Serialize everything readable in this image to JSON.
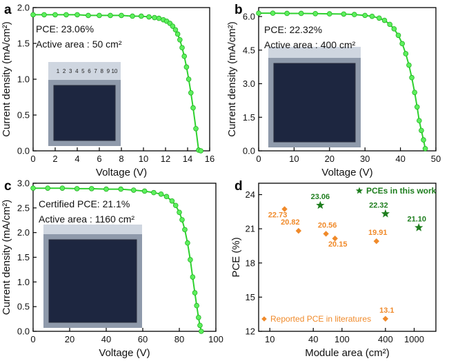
{
  "colors": {
    "curve": "#2ed12e",
    "marker_fill": "#5df05d",
    "marker_edge": "#22b022",
    "this_work": "#1e7e1e",
    "literature": "#f08a2a",
    "module_photo": "#1d2640",
    "ruler": "#cfd6e0"
  },
  "chart_data": [
    {
      "panel": "a",
      "type": "line",
      "xlabel": "Voltage (V)",
      "ylabel": "Current density (mA/cm²)",
      "xlim": [
        0,
        16
      ],
      "ylim": [
        0,
        2.0
      ],
      "xticks": [
        0,
        2,
        4,
        6,
        8,
        10,
        12,
        14,
        16
      ],
      "yticks": [
        0.0,
        0.5,
        1.0,
        1.5,
        2.0
      ],
      "yfmt": 1,
      "annotations": [
        "PCE: 23.06%",
        "Active area : 50 cm²"
      ],
      "ruler_marks": [
        "1",
        "2",
        "3",
        "4",
        "5",
        "6",
        "7",
        "8",
        "9",
        "10"
      ],
      "curve": {
        "jsc": 1.9,
        "voc": 15.2,
        "ka": 0.005,
        "kb": 0.0028
      },
      "x": [
        0.0,
        1.0,
        2.0,
        3.0,
        4.0,
        5.0,
        6.0,
        7.0,
        8.0,
        9.0,
        9.8,
        10.5,
        11.0,
        11.4,
        11.8,
        12.1,
        12.4,
        12.65,
        12.9,
        13.1,
        13.3,
        13.5,
        13.7,
        13.9,
        14.1,
        14.3,
        14.5,
        14.75,
        15.0,
        15.2
      ],
      "y": [
        1.9,
        1.9,
        1.9,
        1.9,
        1.9,
        1.89,
        1.89,
        1.89,
        1.89,
        1.88,
        1.88,
        1.87,
        1.86,
        1.85,
        1.83,
        1.81,
        1.78,
        1.74,
        1.69,
        1.63,
        1.55,
        1.44,
        1.32,
        1.17,
        1.0,
        0.81,
        0.6,
        0.31,
        0.01,
        0.0
      ]
    },
    {
      "panel": "b",
      "type": "line",
      "xlabel": "Voltage (V)",
      "ylabel": "Current density (mA/cm²)",
      "xlim": [
        0,
        50
      ],
      "ylim": [
        0,
        6.4
      ],
      "xticks": [
        0,
        10,
        20,
        30,
        40,
        50
      ],
      "yticks": [
        0.0,
        1.5,
        3.0,
        4.5,
        6.0
      ],
      "yfmt": 1,
      "annotations": [
        "PCE: 22.32%",
        "Active area : 400 cm²"
      ],
      "curve": {
        "jsc": 6.15,
        "voc": 47.0,
        "ka": 0.0035,
        "kb": 0.0016
      },
      "x": [
        0,
        4,
        8,
        12,
        16,
        20,
        24,
        27,
        30,
        32,
        34,
        35.5,
        37,
        38.2,
        39.4,
        40.5,
        41.5,
        42.4,
        43.2,
        44.0,
        44.7,
        45.3,
        45.9,
        46.5,
        47.0
      ],
      "y": [
        6.15,
        6.15,
        6.14,
        6.14,
        6.13,
        6.12,
        6.11,
        6.09,
        6.05,
        6.01,
        5.93,
        5.83,
        5.65,
        5.45,
        5.16,
        4.79,
        4.34,
        3.83,
        3.27,
        2.61,
        1.96,
        1.35,
        0.91,
        0.49,
        0.1
      ]
    },
    {
      "panel": "c",
      "type": "line",
      "xlabel": "Voltage (V)",
      "ylabel": "Current density (mA/cm²)",
      "xlim": [
        0,
        100
      ],
      "ylim": [
        0,
        3.0
      ],
      "xticks": [
        0,
        20,
        40,
        60,
        80,
        100
      ],
      "yticks": [
        0.0,
        0.5,
        1.0,
        1.5,
        2.0,
        2.5,
        3.0
      ],
      "yfmt": 1,
      "annotations": [
        "Certified PCE: 21.1%",
        "Active area : 1160 cm²"
      ],
      "curve": {
        "jsc": 2.9,
        "voc": 92.0,
        "ka": 0.004,
        "kb": 0.002
      },
      "x": [
        0,
        8,
        16,
        24,
        32,
        40,
        48,
        55,
        61,
        66,
        70,
        73,
        76,
        78,
        80,
        81.5,
        83,
        84.5,
        86,
        87.3,
        88.5,
        89.5,
        90.5,
        91.3,
        92.0
      ],
      "y": [
        2.9,
        2.9,
        2.9,
        2.89,
        2.89,
        2.88,
        2.88,
        2.86,
        2.84,
        2.81,
        2.78,
        2.73,
        2.64,
        2.55,
        2.41,
        2.26,
        2.06,
        1.79,
        1.45,
        1.1,
        0.78,
        0.52,
        0.28,
        0.12,
        0.0
      ]
    },
    {
      "panel": "d",
      "type": "scatter",
      "xlabel": "Module area (cm²)",
      "ylabel": "PCE (%)",
      "xscale": "log",
      "xlim": [
        7,
        2000
      ],
      "ylim": [
        12,
        25
      ],
      "xticks": [
        10,
        40,
        100,
        400,
        1000
      ],
      "yticks": [
        12,
        15,
        18,
        21,
        24
      ],
      "yfmt": 0,
      "series": [
        {
          "name": "PCEs in this work",
          "marker": "star",
          "x": [
            50,
            400,
            1160
          ],
          "y": [
            23.06,
            22.32,
            21.1
          ],
          "labels": [
            "23.06",
            "22.32",
            "21.10"
          ]
        },
        {
          "name": "Reported PCE in literatures",
          "marker": "diamond",
          "x": [
            16,
            25,
            60,
            80,
            300,
            400
          ],
          "y": [
            22.73,
            20.82,
            20.56,
            20.15,
            19.91,
            13.1
          ],
          "labels": [
            "22.73",
            "20.82",
            "20.56",
            "20.15",
            "19.91",
            "13.1"
          ]
        }
      ]
    }
  ]
}
